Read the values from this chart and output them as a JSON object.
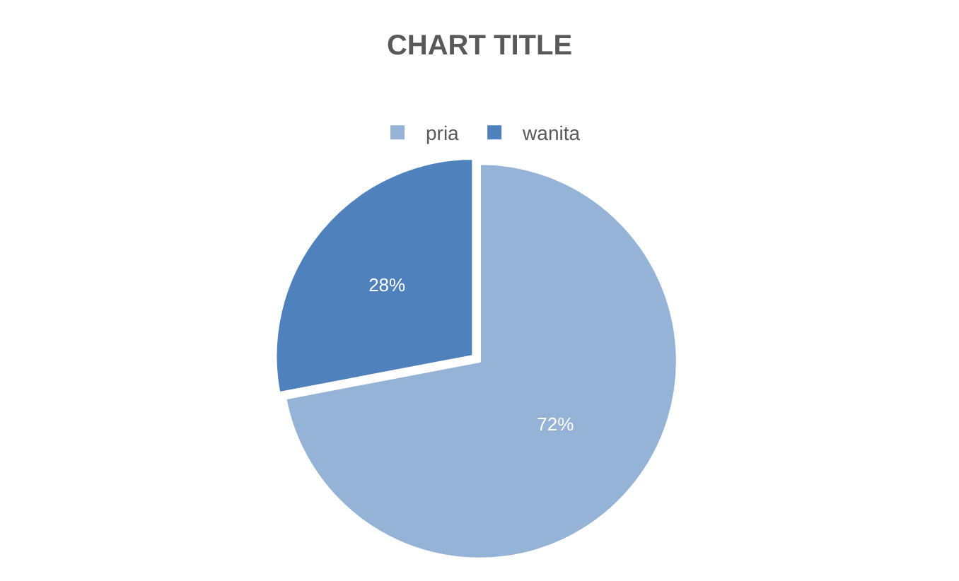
{
  "chart_data": {
    "type": "pie",
    "title": "CHART TITLE",
    "categories": [
      "pria",
      "wanita"
    ],
    "values": [
      72,
      28
    ],
    "colors": [
      "#95b3d7",
      "#4f81bd"
    ],
    "value_labels": [
      "72%",
      "28%"
    ],
    "legend": "top"
  }
}
